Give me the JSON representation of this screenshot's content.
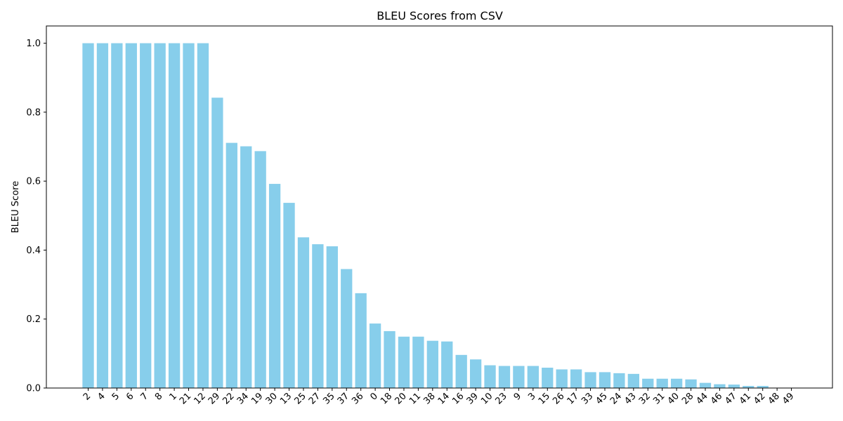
{
  "chart_data": {
    "type": "bar",
    "title": "BLEU Scores from CSV",
    "xlabel": "",
    "ylabel": "BLEU Score",
    "ylim": [
      0,
      1.05
    ],
    "yticks": [
      0.0,
      0.2,
      0.4,
      0.6,
      0.8,
      1.0
    ],
    "ytick_labels": [
      "0.0",
      "0.2",
      "0.4",
      "0.6",
      "0.8",
      "1.0"
    ],
    "bar_color": "#87ceeb",
    "grid": false,
    "categories": [
      "2",
      "4",
      "5",
      "6",
      "7",
      "8",
      "1",
      "21",
      "12",
      "29",
      "22",
      "34",
      "19",
      "30",
      "13",
      "25",
      "27",
      "35",
      "37",
      "36",
      "0",
      "18",
      "20",
      "11",
      "38",
      "14",
      "16",
      "39",
      "10",
      "23",
      "9",
      "3",
      "15",
      "26",
      "17",
      "33",
      "45",
      "24",
      "43",
      "32",
      "31",
      "40",
      "28",
      "44",
      "46",
      "47",
      "41",
      "42",
      "48",
      "49"
    ],
    "values": [
      1.0,
      1.0,
      1.0,
      1.0,
      1.0,
      1.0,
      1.0,
      1.0,
      1.0,
      0.842,
      0.711,
      0.701,
      0.687,
      0.592,
      0.537,
      0.437,
      0.417,
      0.411,
      0.345,
      0.275,
      0.187,
      0.165,
      0.149,
      0.149,
      0.137,
      0.135,
      0.096,
      0.083,
      0.066,
      0.064,
      0.064,
      0.064,
      0.059,
      0.054,
      0.054,
      0.046,
      0.046,
      0.043,
      0.041,
      0.027,
      0.027,
      0.027,
      0.025,
      0.015,
      0.011,
      0.01,
      0.006,
      0.006,
      0.0,
      0.0
    ]
  }
}
